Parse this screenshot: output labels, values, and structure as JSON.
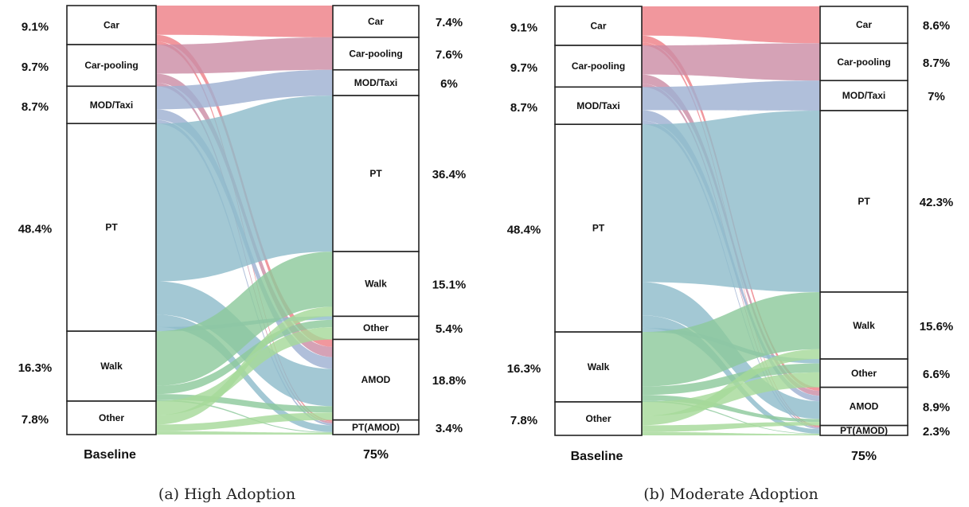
{
  "chart_data": [
    {
      "type": "sankey",
      "caption": "(a) High Adoption",
      "left_label": "Baseline",
      "right_label": "75%",
      "left_nodes": [
        {
          "name": "Car",
          "pct": "9.1%",
          "value": 9.1
        },
        {
          "name": "Car-pooling",
          "pct": "9.7%",
          "value": 9.7
        },
        {
          "name": "MOD/Taxi",
          "pct": "8.7%",
          "value": 8.7
        },
        {
          "name": "PT",
          "pct": "48.4%",
          "value": 48.4
        },
        {
          "name": "Walk",
          "pct": "16.3%",
          "value": 16.3
        },
        {
          "name": "Other",
          "pct": "7.8%",
          "value": 7.8
        }
      ],
      "right_nodes": [
        {
          "name": "Car",
          "pct": "7.4%",
          "value": 7.4
        },
        {
          "name": "Car-pooling",
          "pct": "7.6%",
          "value": 7.6
        },
        {
          "name": "MOD/Taxi",
          "pct": "6%",
          "value": 6
        },
        {
          "name": "PT",
          "pct": "36.4%",
          "value": 36.4
        },
        {
          "name": "Walk",
          "pct": "15.1%",
          "value": 15.1
        },
        {
          "name": "Other",
          "pct": "5.4%",
          "value": 5.4
        },
        {
          "name": "AMOD",
          "pct": "18.8%",
          "value": 18.8
        },
        {
          "name": "PT(AMOD)",
          "pct": "3.4%",
          "value": 3.4
        }
      ]
    },
    {
      "type": "sankey",
      "caption": "(b) Moderate Adoption",
      "left_label": "Baseline",
      "right_label": "75%",
      "left_nodes": [
        {
          "name": "Car",
          "pct": "9.1%",
          "value": 9.1
        },
        {
          "name": "Car-pooling",
          "pct": "9.7%",
          "value": 9.7
        },
        {
          "name": "MOD/Taxi",
          "pct": "8.7%",
          "value": 8.7
        },
        {
          "name": "PT",
          "pct": "48.4%",
          "value": 48.4
        },
        {
          "name": "Walk",
          "pct": "16.3%",
          "value": 16.3
        },
        {
          "name": "Other",
          "pct": "7.8%",
          "value": 7.8
        }
      ],
      "right_nodes": [
        {
          "name": "Car",
          "pct": "8.6%",
          "value": 8.6
        },
        {
          "name": "Car-pooling",
          "pct": "8.7%",
          "value": 8.7
        },
        {
          "name": "MOD/Taxi",
          "pct": "7%",
          "value": 7
        },
        {
          "name": "PT",
          "pct": "42.3%",
          "value": 42.3
        },
        {
          "name": "Walk",
          "pct": "15.6%",
          "value": 15.6
        },
        {
          "name": "Other",
          "pct": "6.6%",
          "value": 6.6
        },
        {
          "name": "AMOD",
          "pct": "8.9%",
          "value": 8.9
        },
        {
          "name": "PT(AMOD)",
          "pct": "2.3%",
          "value": 2.3
        }
      ]
    }
  ],
  "colors": {
    "Car": "#ee8088",
    "Car-pooling": "#cc8ea6",
    "MOD/Taxi": "#9fb1d2",
    "PT": "#8fbccb",
    "Walk": "#8ec99c",
    "Other": "#a6d99a"
  }
}
